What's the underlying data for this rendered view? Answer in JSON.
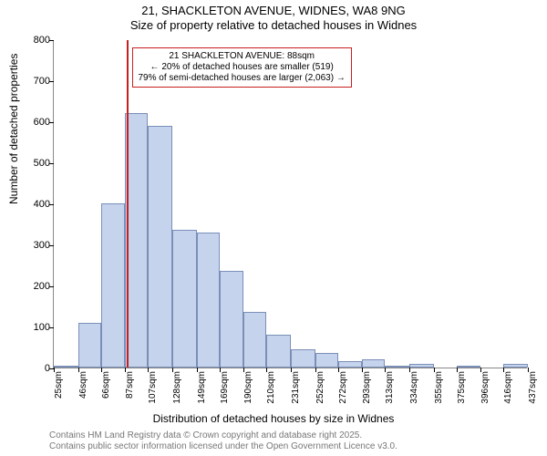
{
  "title": "21, SHACKLETON AVENUE, WIDNES, WA8 9NG",
  "subtitle": "Size of property relative to detached houses in Widnes",
  "ylabel": "Number of detached properties",
  "xlabel": "Distribution of detached houses by size in Widnes",
  "footer1": "Contains HM Land Registry data © Crown copyright and database right 2025.",
  "footer2": "Contains public sector information licensed under the Open Government Licence v3.0.",
  "chart": {
    "type": "histogram",
    "ylim": [
      0,
      800
    ],
    "yticks": [
      0,
      100,
      200,
      300,
      400,
      500,
      600,
      700,
      800
    ],
    "xticks": [
      "25sqm",
      "46sqm",
      "66sqm",
      "87sqm",
      "107sqm",
      "128sqm",
      "149sqm",
      "169sqm",
      "190sqm",
      "210sqm",
      "231sqm",
      "252sqm",
      "272sqm",
      "293sqm",
      "313sqm",
      "334sqm",
      "355sqm",
      "375sqm",
      "396sqm",
      "416sqm",
      "437sqm"
    ],
    "bar_color": "#c6d3ec",
    "bar_border_color": "#7a8fb8",
    "marker_color": "#c81e1e",
    "background_color": "#ffffff",
    "bars": [
      {
        "x_start": 25,
        "x_end": 46,
        "value": 5
      },
      {
        "x_start": 46,
        "x_end": 66,
        "value": 110
      },
      {
        "x_start": 66,
        "x_end": 87,
        "value": 400
      },
      {
        "x_start": 87,
        "x_end": 107,
        "value": 620
      },
      {
        "x_start": 107,
        "x_end": 128,
        "value": 590
      },
      {
        "x_start": 128,
        "x_end": 149,
        "value": 335
      },
      {
        "x_start": 149,
        "x_end": 169,
        "value": 330
      },
      {
        "x_start": 169,
        "x_end": 190,
        "value": 235
      },
      {
        "x_start": 190,
        "x_end": 210,
        "value": 135
      },
      {
        "x_start": 210,
        "x_end": 231,
        "value": 80
      },
      {
        "x_start": 231,
        "x_end": 252,
        "value": 45
      },
      {
        "x_start": 252,
        "x_end": 272,
        "value": 35
      },
      {
        "x_start": 272,
        "x_end": 293,
        "value": 15
      },
      {
        "x_start": 293,
        "x_end": 313,
        "value": 20
      },
      {
        "x_start": 313,
        "x_end": 334,
        "value": 5
      },
      {
        "x_start": 334,
        "x_end": 355,
        "value": 8
      },
      {
        "x_start": 355,
        "x_end": 375,
        "value": 0
      },
      {
        "x_start": 375,
        "x_end": 396,
        "value": 5
      },
      {
        "x_start": 396,
        "x_end": 416,
        "value": 0
      },
      {
        "x_start": 416,
        "x_end": 437,
        "value": 10
      }
    ],
    "xlim": [
      25,
      437
    ],
    "marker_x": 88,
    "annotation": {
      "line1": "21 SHACKLETON AVENUE: 88sqm",
      "line2": "← 20% of detached houses are smaller (519)",
      "line3": "79% of semi-detached houses are larger (2,063) →",
      "border_color": "#c81e1e"
    }
  }
}
